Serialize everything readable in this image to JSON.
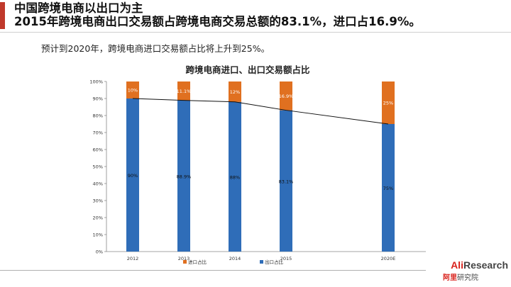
{
  "slide": {
    "title_line1": "中国跨境电商以出口为主",
    "title_line2": "2015年跨境电商出口交易额占跨境电商交易总额的83.1%，进口占16.9%。",
    "subtitle": "预计到2020年，跨境电商进口交易额占比将上升到25%。"
  },
  "logo": {
    "brand_ali": "Ali",
    "brand_research": "Research",
    "brand_cn_red": "阿里",
    "brand_cn": "研究院"
  },
  "colors": {
    "import": "#e07020",
    "export": "#2f6db8",
    "line": "#111111",
    "accent": "#c0392b"
  },
  "chart_data": {
    "type": "bar",
    "title": "跨境电商进口、出口交易额占比",
    "categories": [
      "2012",
      "2013",
      "2014",
      "2015",
      "2020E"
    ],
    "series": [
      {
        "name": "出口占比",
        "values": [
          90,
          88.9,
          88,
          83.1,
          75
        ],
        "labels": [
          "90%",
          "88.9%",
          "88%",
          "83.1%",
          "75%"
        ]
      },
      {
        "name": "进口占比",
        "values": [
          10,
          11.1,
          12,
          16.9,
          25
        ],
        "labels": [
          "10%",
          "11.1%",
          "12%",
          "16.9%",
          "25%"
        ]
      }
    ],
    "stacked": true,
    "trend_line_series": "出口占比",
    "ylim": [
      0,
      100
    ],
    "yticks": [
      "0%",
      "10%",
      "20%",
      "30%",
      "40%",
      "50%",
      "60%",
      "70%",
      "80%",
      "90%",
      "100%"
    ],
    "legend": [
      "进口占比",
      "出口占比"
    ],
    "legend_position": "bottom",
    "grid": false
  }
}
